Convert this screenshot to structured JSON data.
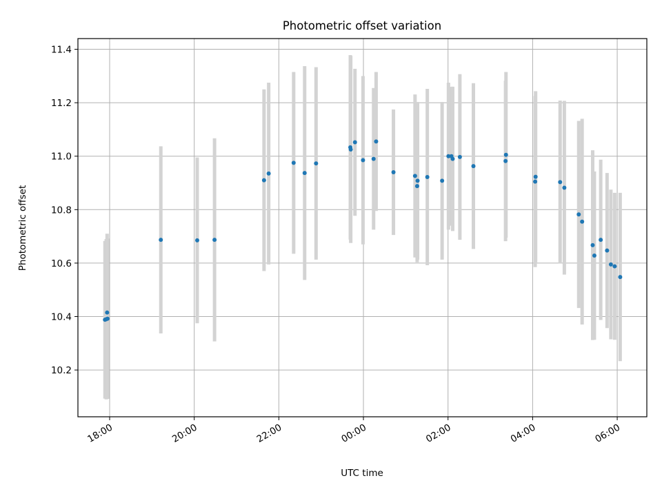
{
  "chart_data": {
    "type": "scatter",
    "title": "Photometric offset variation",
    "xlabel": "UTC time",
    "ylabel": "Photometric offset",
    "x_unit": "hours (UTC, relative to 00:00)",
    "xlim": [
      -6.75,
      6.7
    ],
    "ylim": [
      10.025,
      11.44
    ],
    "x_ticks": [
      {
        "value": -6,
        "label": "18:00"
      },
      {
        "value": -4,
        "label": "20:00"
      },
      {
        "value": -2,
        "label": "22:00"
      },
      {
        "value": 0,
        "label": "00:00"
      },
      {
        "value": 2,
        "label": "02:00"
      },
      {
        "value": 4,
        "label": "04:00"
      },
      {
        "value": 6,
        "label": "06:00"
      }
    ],
    "y_ticks": [
      {
        "value": 10.2,
        "label": "10.2"
      },
      {
        "value": 10.4,
        "label": "10.4"
      },
      {
        "value": 10.6,
        "label": "10.6"
      },
      {
        "value": 10.8,
        "label": "10.8"
      },
      {
        "value": 11.0,
        "label": "11.0"
      },
      {
        "value": 11.2,
        "label": "11.2"
      },
      {
        "value": 11.4,
        "label": "11.4"
      }
    ],
    "grid": true,
    "colors": {
      "point": "#1f77b4",
      "errorbar": "#d3d3d3",
      "grid": "#b0b0b0",
      "axes": "#000000"
    },
    "series": [
      {
        "points": [
          {
            "x": -6.11,
            "y": 10.388,
            "err": 0.295
          },
          {
            "x": -6.08,
            "y": 10.39,
            "err": 0.3
          },
          {
            "x": -6.06,
            "y": 10.415,
            "err": 0.295
          },
          {
            "x": -6.05,
            "y": 10.392,
            "err": 0.3
          },
          {
            "x": -4.79,
            "y": 10.687,
            "err": 0.35
          },
          {
            "x": -3.93,
            "y": 10.685,
            "err": 0.31
          },
          {
            "x": -3.52,
            "y": 10.687,
            "err": 0.38
          },
          {
            "x": -2.35,
            "y": 10.91,
            "err": 0.34
          },
          {
            "x": -2.24,
            "y": 10.935,
            "err": 0.34
          },
          {
            "x": -1.65,
            "y": 10.975,
            "err": 0.34
          },
          {
            "x": -1.39,
            "y": 10.937,
            "err": 0.4
          },
          {
            "x": -1.12,
            "y": 10.973,
            "err": 0.36
          },
          {
            "x": -0.31,
            "y": 11.033,
            "err": 0.345
          },
          {
            "x": -0.3,
            "y": 11.025,
            "err": 0.35
          },
          {
            "x": -0.2,
            "y": 11.052,
            "err": 0.275
          },
          {
            "x": -0.01,
            "y": 10.985,
            "err": 0.315
          },
          {
            "x": 0.24,
            "y": 10.99,
            "err": 0.265
          },
          {
            "x": 0.3,
            "y": 11.055,
            "err": 0.26
          },
          {
            "x": 0.71,
            "y": 10.94,
            "err": 0.235
          },
          {
            "x": 1.22,
            "y": 10.926,
            "err": 0.305
          },
          {
            "x": 1.27,
            "y": 10.888,
            "err": 0.285
          },
          {
            "x": 1.28,
            "y": 10.908,
            "err": 0.295
          },
          {
            "x": 1.51,
            "y": 10.922,
            "err": 0.33
          },
          {
            "x": 1.86,
            "y": 10.908,
            "err": 0.295
          },
          {
            "x": 2.01,
            "y": 11.0,
            "err": 0.275
          },
          {
            "x": 2.08,
            "y": 11.0,
            "err": 0.26
          },
          {
            "x": 2.11,
            "y": 10.99,
            "err": 0.27
          },
          {
            "x": 2.28,
            "y": 10.997,
            "err": 0.31
          },
          {
            "x": 2.6,
            "y": 10.963,
            "err": 0.31
          },
          {
            "x": 3.36,
            "y": 10.982,
            "err": 0.3
          },
          {
            "x": 3.37,
            "y": 11.005,
            "err": 0.31
          },
          {
            "x": 4.06,
            "y": 10.905,
            "err": 0.32
          },
          {
            "x": 4.07,
            "y": 10.923,
            "err": 0.32
          },
          {
            "x": 4.65,
            "y": 10.903,
            "err": 0.305
          },
          {
            "x": 4.75,
            "y": 10.882,
            "err": 0.325
          },
          {
            "x": 5.09,
            "y": 10.782,
            "err": 0.35
          },
          {
            "x": 5.17,
            "y": 10.755,
            "err": 0.385
          },
          {
            "x": 5.42,
            "y": 10.667,
            "err": 0.355
          },
          {
            "x": 5.46,
            "y": 10.628,
            "err": 0.315
          },
          {
            "x": 5.61,
            "y": 10.687,
            "err": 0.3
          },
          {
            "x": 5.76,
            "y": 10.647,
            "err": 0.29
          },
          {
            "x": 5.85,
            "y": 10.595,
            "err": 0.28
          },
          {
            "x": 5.94,
            "y": 10.588,
            "err": 0.275
          },
          {
            "x": 6.07,
            "y": 10.548,
            "err": 0.315
          }
        ]
      }
    ]
  }
}
